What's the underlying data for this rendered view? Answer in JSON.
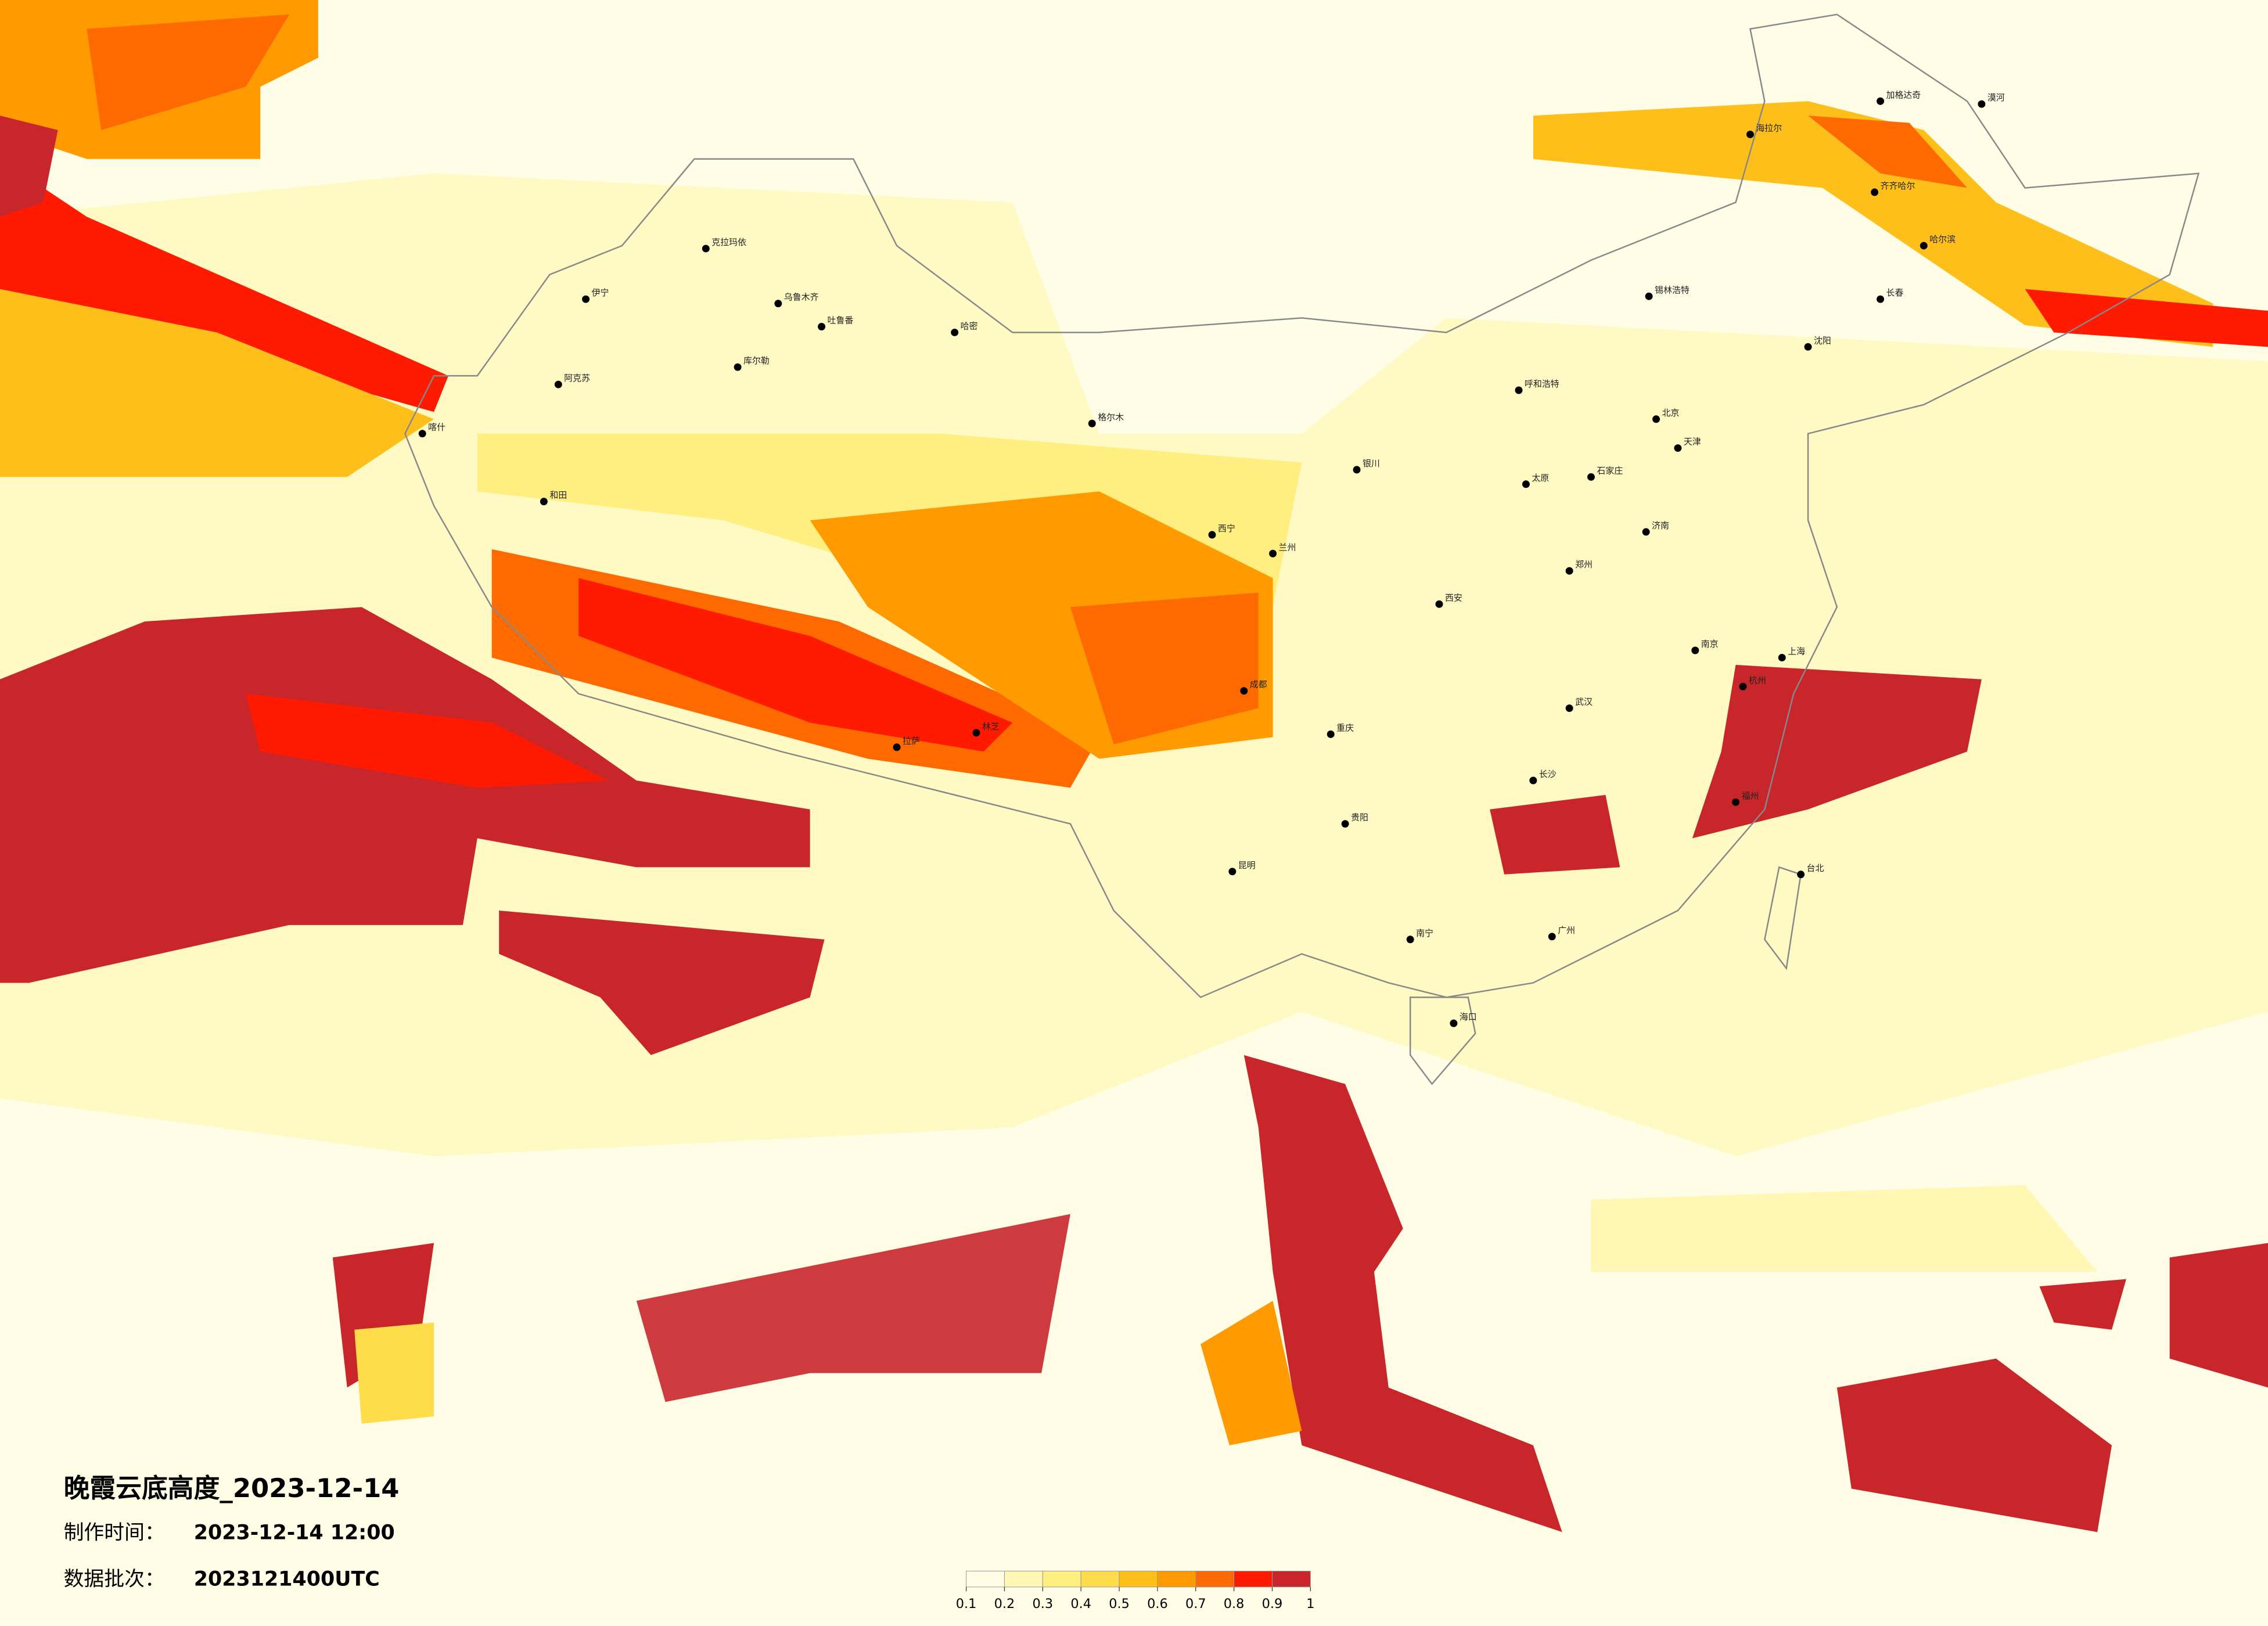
{
  "title": "晚霞云底高度_2023-12-14",
  "info": [
    {
      "label": "制作时间：",
      "value": "2023-12-14 12:00"
    },
    {
      "label": "数据批次：",
      "value": "2023121400UTC"
    }
  ],
  "legend": {
    "ticks": [
      0.1,
      0.2,
      0.3,
      0.4,
      0.5,
      0.6,
      0.7,
      0.8,
      0.9,
      1
    ],
    "colors": [
      "#fffde6",
      "#fff7b3",
      "#ffee80",
      "#ffdd4a",
      "#ffbf1a",
      "#ff9a00",
      "#ff6a00",
      "#ff1a00",
      "#c8262b"
    ]
  },
  "cities": [
    "克拉玛依",
    "乌鲁木齐",
    "吐鲁番",
    "哈密",
    "伊宁",
    "库尔勒",
    "阿克苏",
    "喀什",
    "和田",
    "格尔木",
    "西宁",
    "兰州",
    "银川",
    "拉萨",
    "林芝",
    "成都",
    "重庆",
    "昆明",
    "贵阳",
    "南宁",
    "海口",
    "广州",
    "福州",
    "台北",
    "杭州",
    "上海",
    "南京",
    "武汉",
    "长沙",
    "郑州",
    "西安",
    "太原",
    "北京",
    "天津",
    "石家庄",
    "济南",
    "呼和浩特",
    "沈阳",
    "长春",
    "哈尔滨",
    "齐齐哈尔",
    "海拉尔",
    "锡林浩特",
    "加格达奇",
    "漠河"
  ]
}
